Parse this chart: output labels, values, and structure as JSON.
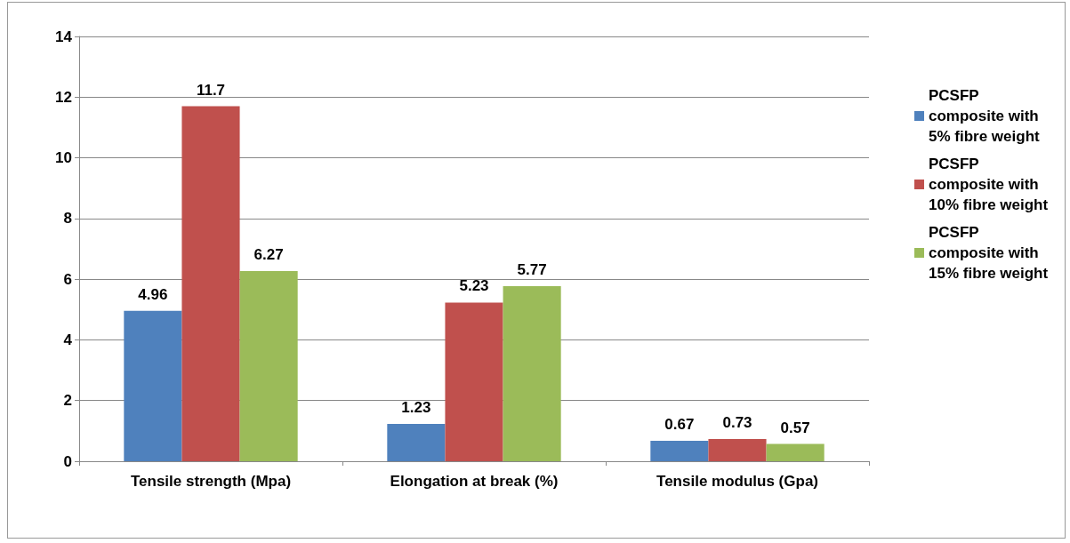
{
  "chart_data": {
    "type": "bar",
    "categories": [
      "Tensile strength (Mpa)",
      "Elongation at break (%)",
      "Tensile modulus (Gpa)"
    ],
    "series": [
      {
        "name": "PCSFP composite with 5% fibre weight",
        "color": "#4f81bd",
        "values": [
          4.96,
          1.23,
          0.67
        ]
      },
      {
        "name": "PCSFP composite with 10% fibre weight",
        "color": "#c0504d",
        "values": [
          11.7,
          5.23,
          0.73
        ]
      },
      {
        "name": "PCSFP composite with 15% fibre weight",
        "color": "#9bbb59",
        "values": [
          6.27,
          5.77,
          0.57
        ]
      }
    ],
    "ylim": [
      0,
      14
    ],
    "yticks": [
      0,
      2,
      4,
      6,
      8,
      10,
      12,
      14
    ],
    "grid": "y",
    "legend": "right",
    "data_labels": true
  }
}
